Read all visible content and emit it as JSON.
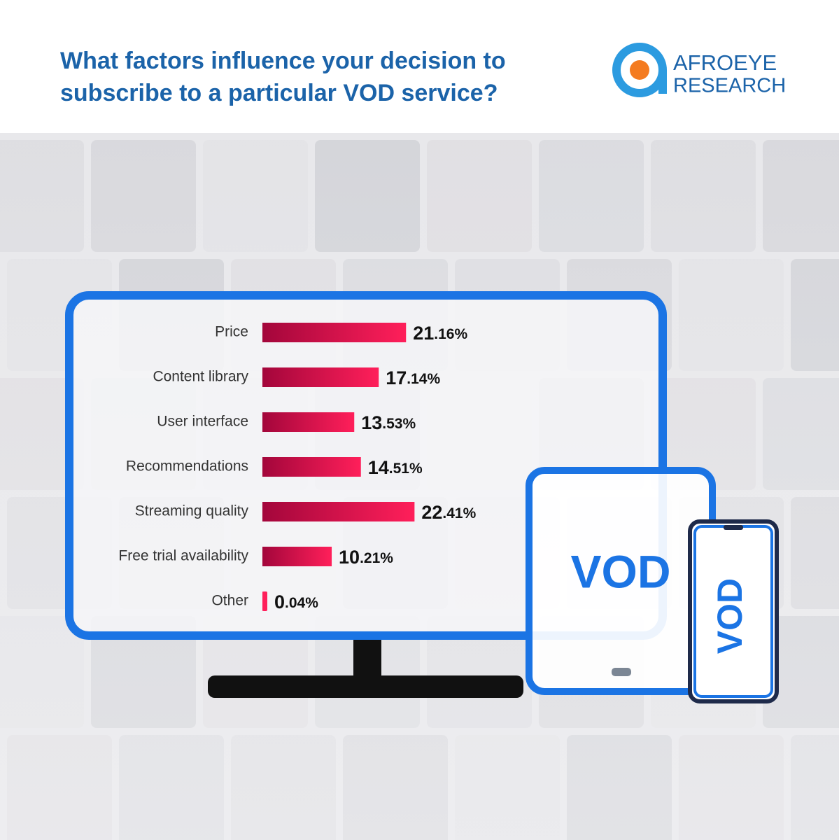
{
  "title": "What factors influence your decision to subscribe to a particular VOD service?",
  "logo": {
    "line1": "AFROEYE",
    "line2": "RESEARCH"
  },
  "device_label": "VOD",
  "chart_data": {
    "type": "barh",
    "categories": [
      "Price",
      "Content library",
      "User interface",
      "Recommendations",
      "Streaming quality",
      "Free trial availability",
      "Other"
    ],
    "values": [
      21.16,
      17.14,
      13.53,
      14.51,
      22.41,
      10.21,
      0.04
    ],
    "value_labels": [
      "21.16%",
      "17.14%",
      "13.53%",
      "14.51%",
      "22.41%",
      "10.21%",
      "0.04%"
    ],
    "color": [
      "#a3063b",
      "#ff1f5a"
    ]
  }
}
